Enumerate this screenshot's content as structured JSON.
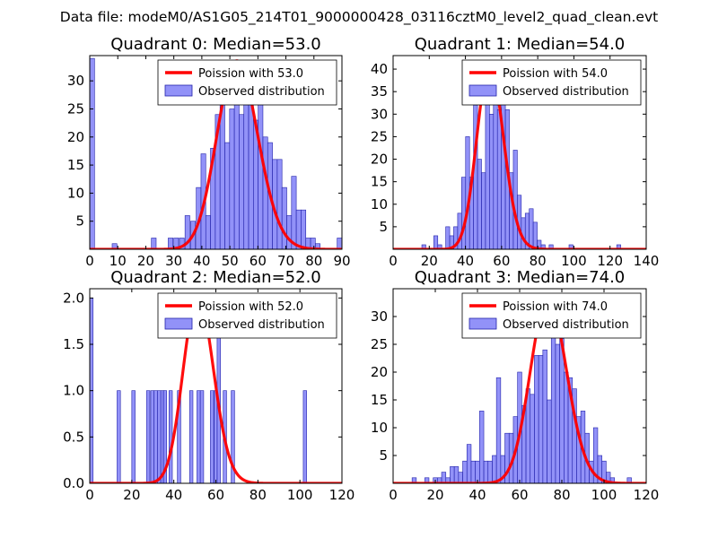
{
  "figure": {
    "suptitle": "Data file: modeM0/AS1G05_214T01_9000000428_03116cztM0_level2_quad_clean.evt"
  },
  "colors": {
    "bar_fill": "#7f7ff7",
    "bar_edge": "#2222aa",
    "poisson_line": "#ff0000",
    "axis": "#000000",
    "legend_edge": "#000000"
  },
  "chart_data": [
    {
      "type": "bar",
      "title": "Quadrant 0: Median=53.0",
      "xlim": [
        0,
        90
      ],
      "ylim": [
        0,
        34.5
      ],
      "xticks": [
        0,
        10,
        20,
        30,
        40,
        50,
        60,
        70,
        80,
        90
      ],
      "yticks": [
        5,
        10,
        15,
        20,
        25,
        30
      ],
      "ytick_labels": [
        "5",
        "10",
        "15",
        "20",
        "25",
        "30"
      ],
      "bin_width": 1.7,
      "bins_x": [
        0,
        8,
        22,
        28,
        30,
        32,
        34,
        36,
        38,
        39.7,
        41.4,
        43.1,
        44.8,
        46.5,
        48.2,
        49.9,
        51.6,
        53.3,
        55,
        56.7,
        58.4,
        60.1,
        61.8,
        63.5,
        65.2,
        66.9,
        68.6,
        70.3,
        72,
        73.7,
        75.4,
        77.1,
        78.8,
        80.5,
        88.3
      ],
      "counts": [
        34,
        1,
        2,
        2,
        2,
        2,
        6,
        5,
        11,
        17,
        6,
        18,
        24,
        33,
        19,
        25,
        28,
        24,
        33,
        29,
        23,
        26,
        20,
        19,
        16,
        16,
        11,
        6,
        13,
        7,
        7,
        2,
        2,
        1,
        2
      ],
      "poisson": {
        "label": "Poission with 53.0",
        "mean": 53.0,
        "peak": 33.5
      },
      "legend_observed": "Observed distribution",
      "legend_loc": "top-right"
    },
    {
      "type": "bar",
      "title": "Quadrant 1: Median=54.0",
      "xlim": [
        0,
        140
      ],
      "ylim": [
        0,
        43
      ],
      "xticks": [
        0,
        20,
        40,
        60,
        80,
        100,
        120,
        140
      ],
      "yticks": [
        5,
        10,
        15,
        20,
        25,
        30,
        35,
        40
      ],
      "ytick_labels": [
        "5",
        "10",
        "15",
        "20",
        "25",
        "30",
        "35",
        "40"
      ],
      "bin_width": 2.2,
      "bins_x": [
        15.9,
        22.5,
        24.7,
        29.1,
        31.3,
        33.5,
        35.7,
        37.9,
        40.1,
        42.3,
        44.5,
        46.7,
        48.9,
        51.1,
        53.3,
        55.5,
        57.7,
        59.9,
        62.1,
        64.3,
        66.5,
        68.7,
        70.9,
        73.1,
        75.3,
        77.5,
        79.7,
        81.9,
        86.3,
        97.3,
        123.7
      ],
      "counts": [
        1,
        3,
        1,
        5,
        3,
        5,
        8,
        16,
        25,
        16,
        32,
        20,
        17,
        37,
        30,
        35,
        31,
        41,
        31,
        17,
        22,
        12,
        7,
        8,
        9,
        6,
        2,
        1,
        1,
        1,
        1
      ],
      "poisson": {
        "label": "Poission with 54.0",
        "mean": 54.0,
        "peak": 41.0
      },
      "legend_observed": "Observed distribution",
      "legend_loc": "top-right"
    },
    {
      "type": "bar",
      "title": "Quadrant 2: Median=52.0",
      "xlim": [
        0,
        120
      ],
      "ylim": [
        0,
        2.1
      ],
      "xticks": [
        0,
        20,
        40,
        60,
        80,
        100,
        120
      ],
      "yticks": [
        0.0,
        0.5,
        1.0,
        1.5,
        2.0
      ],
      "ytick_labels": [
        "0.0",
        "0.5",
        "1.0",
        "1.5",
        "2.0"
      ],
      "bin_width": 1.6,
      "bins_x": [
        0,
        13,
        20,
        27,
        29,
        30.6,
        32.2,
        33.8,
        35,
        37.7,
        41.7,
        47.5,
        51,
        52.6,
        57.4,
        59.2,
        60.6,
        63.5,
        67.3,
        101.6
      ],
      "counts": [
        2,
        1,
        1,
        1,
        1,
        1,
        1,
        1,
        1,
        1,
        1,
        1,
        1,
        1,
        1,
        1,
        2,
        1,
        1,
        1
      ],
      "poisson": {
        "label": "Poission with 52.0",
        "mean": 52.0,
        "peak": 2.02
      },
      "legend_observed": "Observed distribution",
      "legend_loc": "top-right"
    },
    {
      "type": "bar",
      "title": "Quadrant 3: Median=74.0",
      "xlim": [
        0,
        120
      ],
      "ylim": [
        0,
        35
      ],
      "xticks": [
        0,
        20,
        40,
        60,
        80,
        100,
        120
      ],
      "yticks": [
        5,
        10,
        15,
        20,
        25,
        30
      ],
      "ytick_labels": [
        "5",
        "10",
        "15",
        "20",
        "25",
        "30"
      ],
      "bin_width": 2.0,
      "bins_x": [
        9,
        15,
        19,
        21,
        23,
        25,
        27,
        29,
        31,
        33,
        35,
        37,
        39,
        41,
        43,
        45,
        47,
        49,
        51,
        53,
        55,
        57,
        59,
        61,
        63,
        65,
        67,
        69,
        71,
        73,
        75,
        77,
        79,
        81,
        83,
        85,
        87,
        89,
        91,
        93,
        95,
        97,
        99,
        101,
        103,
        111
      ],
      "counts": [
        1,
        1,
        1,
        1,
        2,
        1,
        3,
        3,
        2,
        4,
        7,
        4,
        4,
        13,
        4,
        4,
        5,
        19,
        5,
        9,
        9,
        12,
        20,
        14,
        17,
        16,
        23,
        23,
        24,
        15,
        30,
        25,
        26,
        20,
        19,
        17,
        12,
        13,
        9,
        4,
        10,
        5,
        4,
        2,
        1,
        1
      ],
      "poisson": {
        "label": "Poission with 74.0",
        "mean": 74.0,
        "peak": 33.3
      },
      "legend_observed": "Observed distribution",
      "legend_loc": "top-right"
    }
  ]
}
